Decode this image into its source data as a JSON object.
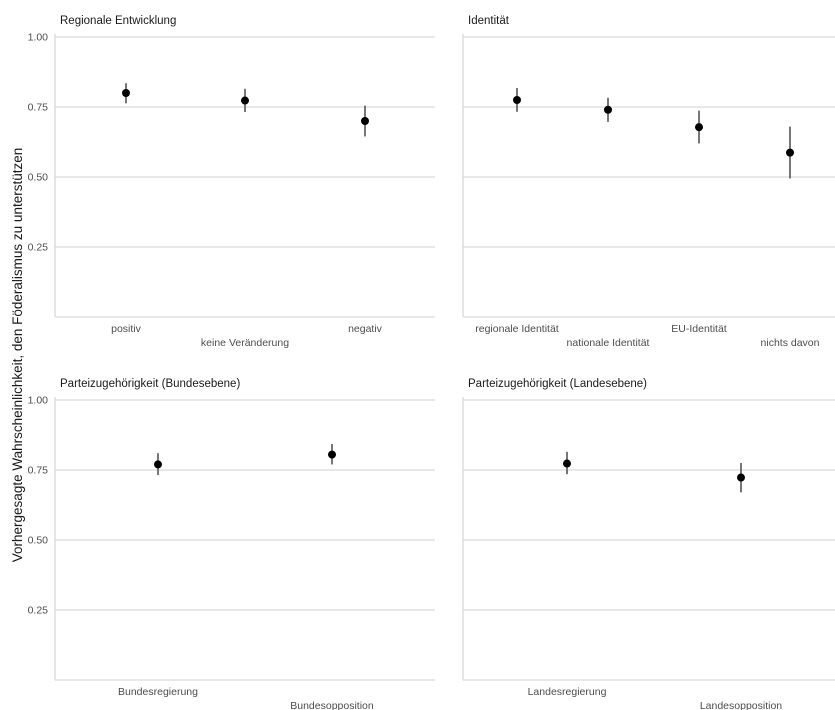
{
  "ylabel": "Vorhergesagte Wahrscheinlichkeit, den Föderalismus zu unterstützen",
  "colors": {
    "grid": "#d9d9d9",
    "point": "#000000",
    "errorbar": "#555555",
    "text": "#4d4d4d"
  },
  "chart_data": [
    {
      "type": "scatter",
      "title": "Regionale Entwicklung",
      "categories": [
        "positiv",
        "keine Veränderung",
        "negativ"
      ],
      "values": [
        0.8,
        0.773,
        0.7
      ],
      "ci_lower": [
        0.763,
        0.732,
        0.645
      ],
      "ci_upper": [
        0.835,
        0.815,
        0.755
      ],
      "yticks": [
        "1.00",
        "0.75",
        "0.50",
        "0.25"
      ],
      "ylim": [
        0,
        1.0
      ],
      "grid": true
    },
    {
      "type": "scatter",
      "title": "Identität",
      "categories": [
        "regionale Identität",
        "nationale Identität",
        "EU-Identität",
        "nichts davon"
      ],
      "values": [
        0.775,
        0.74,
        0.678,
        0.587
      ],
      "ci_lower": [
        0.733,
        0.697,
        0.62,
        0.495
      ],
      "ci_upper": [
        0.818,
        0.783,
        0.737,
        0.68
      ],
      "yticks": [
        "1.00",
        "0.75",
        "0.50",
        "0.25"
      ],
      "ylim": [
        0,
        1.0
      ],
      "grid": true
    },
    {
      "type": "scatter",
      "title": "Parteizugehörigkeit (Bundesebene)",
      "categories": [
        "Bundesregierung",
        "Bundesopposition"
      ],
      "values": [
        0.77,
        0.805
      ],
      "ci_lower": [
        0.732,
        0.77
      ],
      "ci_upper": [
        0.81,
        0.843
      ],
      "yticks": [
        "1.00",
        "0.75",
        "0.50",
        "0.25"
      ],
      "ylim": [
        0,
        1.0
      ],
      "grid": true
    },
    {
      "type": "scatter",
      "title": "Parteizugehörigkeit (Landesebene)",
      "categories": [
        "Landesregierung",
        "Landesopposition"
      ],
      "values": [
        0.773,
        0.723
      ],
      "ci_lower": [
        0.735,
        0.67
      ],
      "ci_upper": [
        0.815,
        0.775
      ],
      "yticks": [
        "1.00",
        "0.75",
        "0.50",
        "0.25"
      ],
      "ylim": [
        0,
        1.0
      ],
      "grid": true
    }
  ]
}
